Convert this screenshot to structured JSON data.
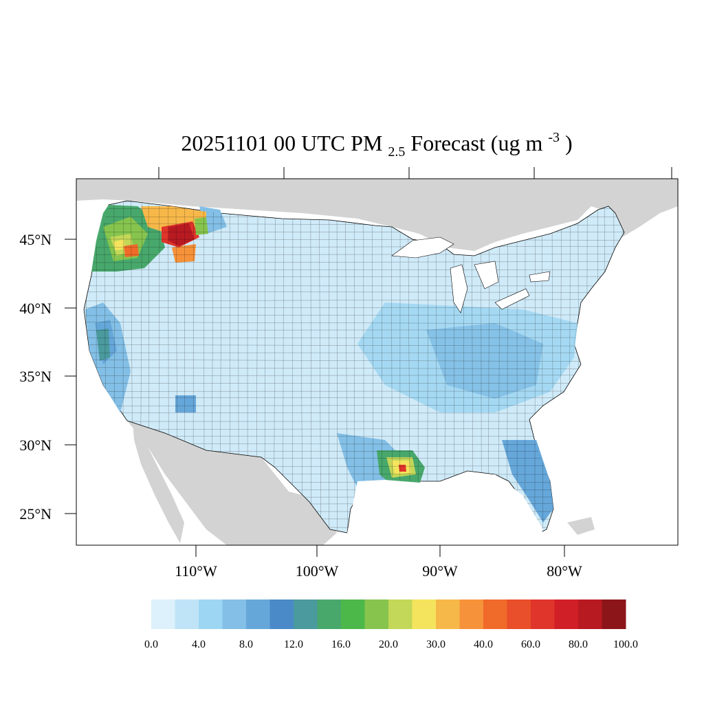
{
  "title": {
    "date_time": "20251101 00 UTC",
    "pm": "PM",
    "pm_sub": "2.5",
    "forecast": " Forecast (ug m",
    "unit_sup": "-3",
    "close": ")"
  },
  "axes": {
    "lat_labels": [
      "45°N",
      "40°N",
      "35°N",
      "30°N",
      "25°N"
    ],
    "lon_labels": [
      "110°W",
      "100°W",
      "90°W",
      "80°W"
    ]
  },
  "colorbar": {
    "colors": [
      "#dcf1fb",
      "#bfe4f7",
      "#9dd6f2",
      "#83bfe6",
      "#66a7da",
      "#4a8ac9",
      "#4a9a9e",
      "#48a86c",
      "#4db84a",
      "#86c44e",
      "#c3d758",
      "#f4e45d",
      "#f7b84a",
      "#f6923a",
      "#f06a2a",
      "#e84f2a",
      "#e0352a",
      "#d11f27",
      "#b81a22",
      "#8c1519"
    ],
    "labels": [
      "0.0",
      "4.0",
      "8.0",
      "12.0",
      "16.0",
      "20.0",
      "30.0",
      "40.0",
      "60.0",
      "80.0",
      "100.0"
    ]
  },
  "land_colors": {
    "outside_land": "#d3d3d3",
    "water": "#ffffff"
  }
}
